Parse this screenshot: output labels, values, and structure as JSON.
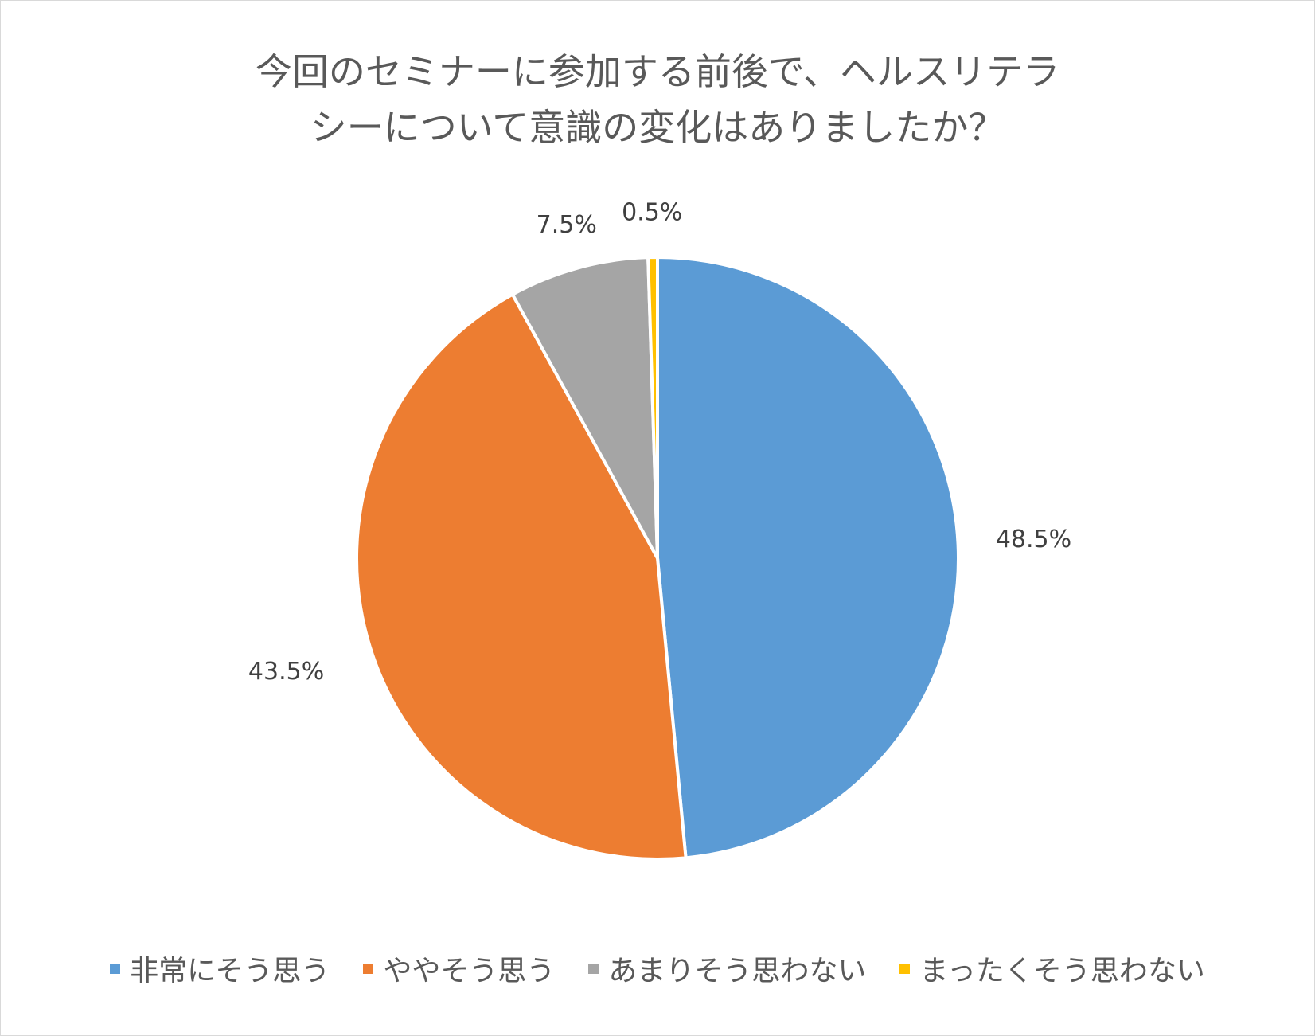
{
  "chart_data": {
    "type": "pie",
    "title_lines": [
      "今回のセミナーに参加する前後で、ヘルスリテラ",
      "シーについて意識の変化はありましたか？"
    ],
    "slices": [
      {
        "name": "非常にそう思う",
        "value": 48.5,
        "label": "48.5%",
        "color": "#5b9bd5"
      },
      {
        "name": "ややそう思う",
        "value": 43.5,
        "label": "43.5%",
        "color": "#ed7d31"
      },
      {
        "name": "あまりそう思わない",
        "value": 7.5,
        "label": "7.5%",
        "color": "#a5a5a5"
      },
      {
        "name": "まったくそう思わない",
        "value": 0.5,
        "label": "0.5%",
        "color": "#ffc000"
      }
    ],
    "legend_position": "bottom",
    "start_angle": "12 o'clock",
    "direction": "clockwise"
  }
}
